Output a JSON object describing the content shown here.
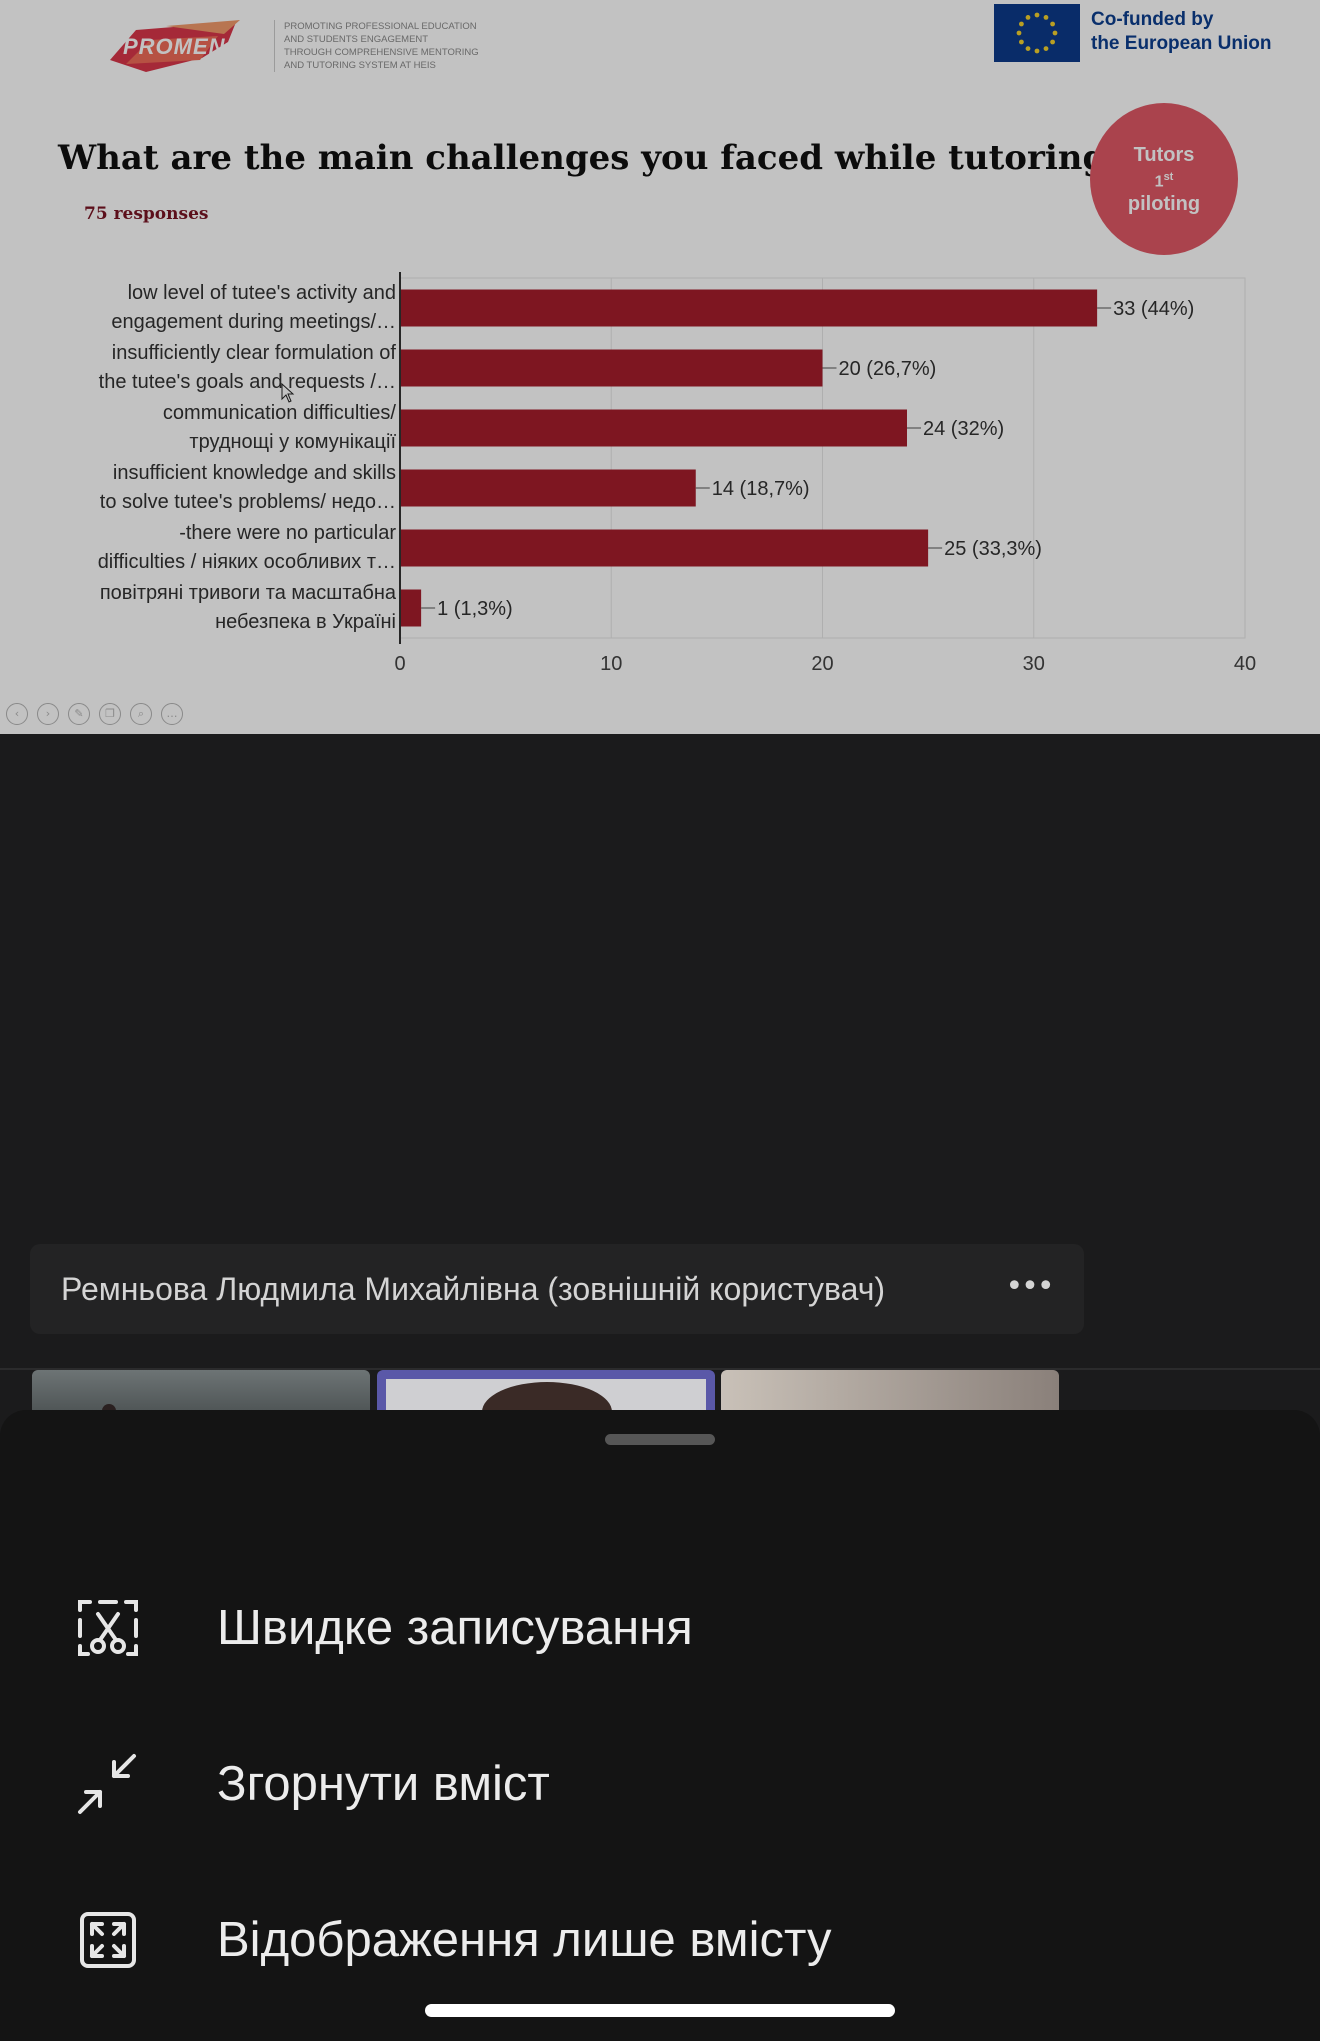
{
  "slide": {
    "logo_text": "PROMEN",
    "tagline": [
      "PROMOTING PROFESSIONAL EDUCATION",
      "AND STUDENTS ENGAGEMENT",
      "THROUGH COMPREHENSIVE MENTORING",
      "AND TUTORING SYSTEM AT HEIS"
    ],
    "eu_funding": [
      "Co-funded by",
      "the European Union"
    ],
    "title": "What are the main challenges you faced while tutoring?",
    "responses": "75 responses",
    "badge": {
      "line1": "Tutors",
      "line2": "1",
      "line2_sup": "st",
      "line3": "piloting"
    },
    "colors": {
      "bar": "#a61e2c",
      "badge": "#e05866",
      "eu_blue": "#0d3a8a"
    }
  },
  "chart_data": {
    "type": "bar",
    "orientation": "horizontal",
    "categories": [
      [
        "low level of tutee's activity and",
        "engagement during meetings/…"
      ],
      [
        "insufficiently clear formulation of",
        "the tutee's goals and requests /…"
      ],
      [
        "communication difficulties/",
        "труднощі у комунікації"
      ],
      [
        "insufficient knowledge and skills",
        "to solve tutee's problems/ недо…"
      ],
      [
        "-there were no particular",
        "difficulties / ніяких особливих т…"
      ],
      [
        "повітряні тривоги та масштабна",
        "небезпека в Україні"
      ]
    ],
    "values": [
      33,
      20,
      24,
      14,
      25,
      1
    ],
    "data_labels": [
      "33 (44%)",
      "20 (26,7%)",
      "24 (32%)",
      "14 (18,7%)",
      "25 (33,3%)",
      "1 (1,3%)"
    ],
    "x_ticks": [
      0,
      10,
      20,
      30,
      40
    ],
    "xlim": [
      0,
      40
    ],
    "grid": true
  },
  "slide_tools": [
    "prev-icon",
    "next-icon",
    "pen-icon",
    "copy-icon",
    "zoom-icon",
    "more-icon"
  ],
  "participant": {
    "name": "Ремньова Людмила Михайлівна (зовнішній користувач)",
    "more_label": "•••"
  },
  "menu": {
    "items": [
      {
        "label": "Швидке записування",
        "icon": "clip-capture-icon"
      },
      {
        "label": "Згорнути вміст",
        "icon": "collapse-arrows-icon"
      },
      {
        "label": "Відображення лише вмісту",
        "icon": "content-only-icon"
      }
    ]
  }
}
